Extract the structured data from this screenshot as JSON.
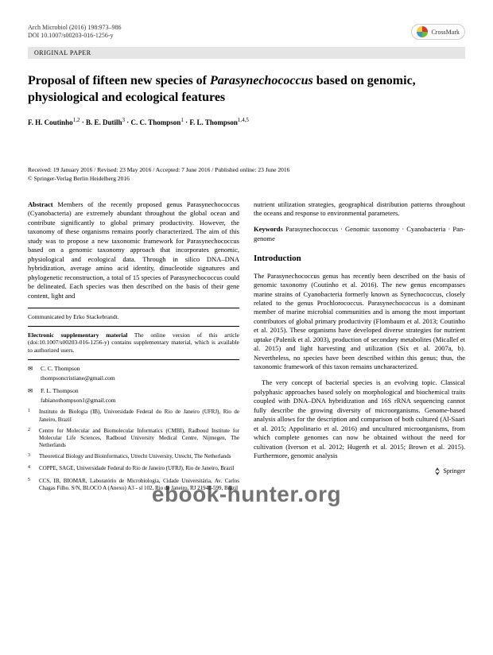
{
  "header": {
    "journal": "Arch Microbiol (2016) 198:973–986",
    "doi": "DOI 10.1007/s00203-016-1256-y",
    "crossmark": "CrossMark"
  },
  "category": "ORIGINAL PAPER",
  "title_pre": "Proposal of fifteen new species of ",
  "title_em": "Parasynechococcus",
  "title_post": " based on genomic, physiological and ecological features",
  "authors_html": "F. H. Coutinho<sup>1,2</sup> · B. E. Dutilh<sup>3</sup> · C. C. Thompson<sup>1</sup> · F. L. Thompson<sup>1,4,5</sup>",
  "dates": "Received: 19 January 2016 / Revised: 23 May 2016 / Accepted: 7 June 2016 / Published online: 23 June 2016",
  "copyright": "© Springer-Verlag Berlin Heidelberg 2016",
  "abstract": {
    "label": "Abstract",
    "text": " Members of the recently proposed genus Parasynechococcus (Cyanobacteria) are extremely abundant throughout the global ocean and contribute significantly to global primary productivity. However, the taxonomy of these organisms remains poorly characterized. The aim of this study was to propose a new taxonomic framework for Parasynechococcus based on a genomic taxonomy approach that incorporates genomic, physiological and ecological data. Through in silico DNA–DNA hybridization, average amino acid identity, dinucleotide signatures and phylogenetic reconstruction, a total of 15 species of Parasynechococcus could be delineated. Each species was then described on the basis of their gene content, light and"
  },
  "communicated": "Communicated by Erko Stackebrandt.",
  "supp": {
    "label": "Electronic supplementary material",
    "text": " The online version of this article (doi:10.1007/s00203-016-1256-y) contains supplementary material, which is available to authorized users."
  },
  "corr1": {
    "name": "C. C. Thompson",
    "email": "thompsoncristiane@gmail.com"
  },
  "corr2": {
    "name": "F. L. Thompson",
    "email": "fabianothompson1@gmail.com"
  },
  "affils": [
    "Instituto de Biologia (IB), Universidade Federal do Rio de Janeiro (UFRJ), Rio de Janeiro, Brazil",
    "Centre for Molecular and Biomolecular Informatics (CMBI), Radboud Institute for Molecular Life Sciences, Radboud University Medical Centre, Nijmegen, The Netherlands",
    "Theoretical Biology and Bioinformatics, Utrecht University, Utrecht, The Netherlands",
    "COPPE, SAGE, Universidade Federal do Rio de Janeiro (UFRJ), Rio de Janeiro, Brazil",
    "CCS, IB, BIOMAR, Laboratório de Microbiologia, Cidade Universitária, Av. Carlos Chagas Filho. S/N, BLOCO A (Anexo) A3 - sl 102, Rio de Janeiro, RJ 21941-599, Brazil"
  ],
  "col2_top": "nutrient utilization strategies, geographical distribution patterns throughout the oceans and response to environmental parameters.",
  "keywords": {
    "label": "Keywords",
    "text": " Parasynechococcus · Genomic taxonomy · Cyanobacteria · Pan-genome"
  },
  "intro_head": "Introduction",
  "intro_text": "The Parasynechococcus genus has recently been described on the basis of genomic taxonomy (Coutinho et al. 2016). The new genus encompasses marine strains of Cyanobacteria formerly known as Synechococcus, closely related to the genus Prochlorococcus. Parasynechococcus is a dominant member of marine microbial communities and is among the most important contributors of global primary productivity (Flombaum et al. 2013; Coutinho et al. 2015). These organisms have developed diverse strategies for nutrient uptake (Palenik et al. 2003), production of secondary metabolites (Micallef et al. 2015) and light harvesting and utilization (Six et al. 2007a, b). Nevertheless, no species have been described within this genus; thus, the taxonomic framework of this taxon remains uncharacterized.",
  "intro_text2": "The very concept of bacterial species is an evolving topic. Classical polyphasic approaches based solely on morphological and biochemical traits coupled with DNA–DNA hybridization and 16S rRNA sequencing cannot fully describe the growing diversity of microorganisms. Genome-based analysis allows for the description and comparison of both cultured (Al-Saari et al. 2015; Appolinario et al. 2016) and uncultured microorganisms, from which complete genomes can now be obtained without the need for cultivation (Iverson et al. 2012; Hugerth et al. 2015; Brown et al. 2015). Furthermore, genomic analysis",
  "springer": "Springer",
  "watermark": "ebook-hunter.org"
}
